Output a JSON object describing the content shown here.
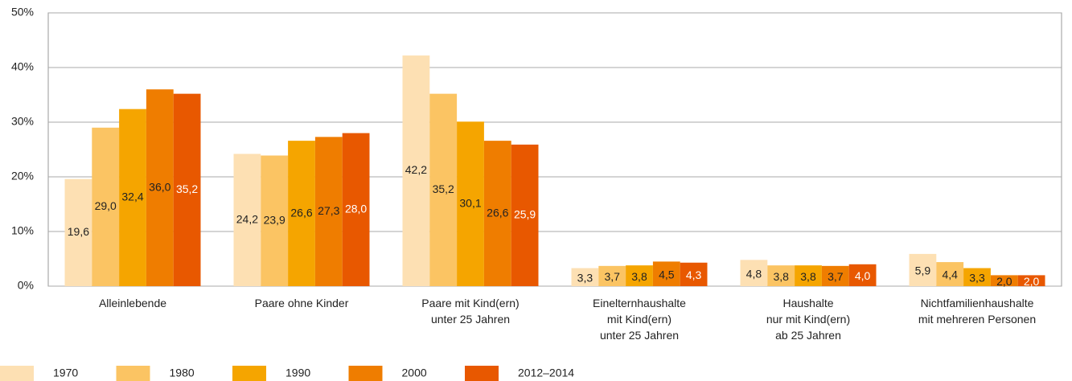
{
  "chart_data": {
    "type": "bar",
    "categories": [
      "Alleinlebende",
      "Paare ohne Kinder",
      "Paare mit Kind(ern)\nunter 25 Jahren",
      "Einelternhaushalte\nmit Kind(ern)\nunter 25 Jahren",
      "Haushalte\nnur mit Kind(ern)\nab 25 Jahren",
      "Nichtfamilienhaushalte\nmit mehreren Personen"
    ],
    "series": [
      {
        "name": "1970",
        "color": "#fde0b3",
        "values": [
          19.6,
          24.2,
          42.2,
          3.3,
          4.8,
          5.9
        ],
        "value_labels": [
          "19,6",
          "24,2",
          "42,2",
          "3,3",
          "4,8",
          "5,9"
        ]
      },
      {
        "name": "1980",
        "color": "#fbc463",
        "values": [
          29.0,
          23.9,
          35.2,
          3.7,
          3.8,
          4.4
        ],
        "value_labels": [
          "29,0",
          "23,9",
          "35,2",
          "3,7",
          "3,8",
          "4,4"
        ]
      },
      {
        "name": "1990",
        "color": "#f5a500",
        "values": [
          32.4,
          26.6,
          30.1,
          3.8,
          3.8,
          3.3
        ],
        "value_labels": [
          "32,4",
          "26,6",
          "30,1",
          "3,8",
          "3,8",
          "3,3"
        ]
      },
      {
        "name": "2000",
        "color": "#ef7d00",
        "values": [
          36.0,
          27.3,
          26.6,
          4.5,
          3.7,
          2.0
        ],
        "value_labels": [
          "36,0",
          "27,3",
          "26,6",
          "4,5",
          "3,7",
          "2,0"
        ]
      },
      {
        "name": "2012–2014",
        "color": "#e85800",
        "values": [
          35.2,
          28.0,
          25.9,
          4.3,
          4.0,
          2.0
        ],
        "value_labels": [
          "35,2",
          "28,0",
          "25,9",
          "4,3",
          "4,0",
          "2,0"
        ]
      }
    ],
    "ylim": [
      0,
      50
    ],
    "yticks": [
      {
        "value": 0,
        "label": "0%"
      },
      {
        "value": 10,
        "label": "10%"
      },
      {
        "value": 20,
        "label": "20%"
      },
      {
        "value": 30,
        "label": "30%"
      },
      {
        "value": 40,
        "label": "40%"
      },
      {
        "value": 50,
        "label": "50%"
      }
    ],
    "grid": true,
    "legend": "bottom"
  }
}
